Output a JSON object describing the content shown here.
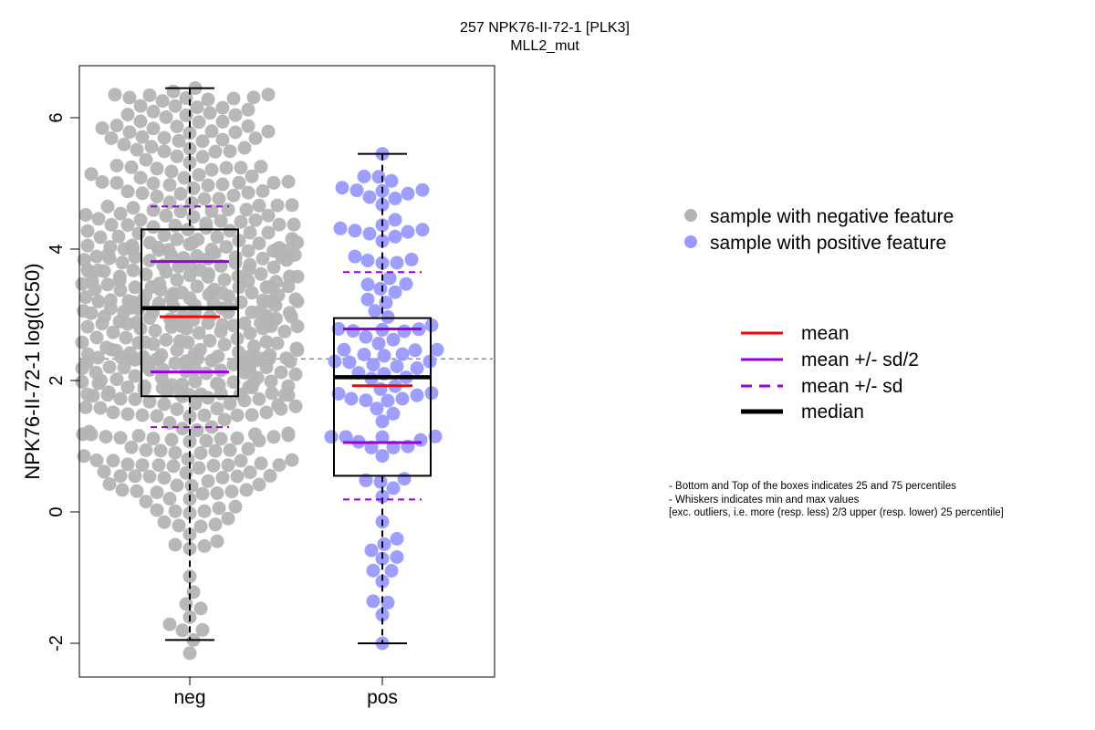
{
  "chart_data": {
    "type": "box-beeswarm",
    "title": "257 NPK76-II-72-1 [PLK3]",
    "subtitle": "MLL2_mut",
    "ylabel": "NPK76-II-72-1 log(IC50)",
    "xlabel": "",
    "ylim": [
      -2.5,
      6.8
    ],
    "yticks": [
      -2,
      0,
      2,
      4,
      6
    ],
    "categories": [
      "neg",
      "pos"
    ],
    "reference_line_y": 2.33,
    "groups": [
      {
        "category": "neg",
        "color": "#b4b4b4",
        "n": 520,
        "seed": 7,
        "min": -1.95,
        "q1": 1.76,
        "median": 3.1,
        "q3": 4.3,
        "max": 6.45,
        "mean": 2.97,
        "sd": 1.68,
        "extra_points": [
          -2.15,
          6.45,
          6.4,
          6.3,
          -1.95,
          -1.6,
          -1.4
        ]
      },
      {
        "category": "pos",
        "color": "#9999ff",
        "n": 100,
        "seed": 13,
        "min": -2.0,
        "q1": 0.55,
        "median": 2.05,
        "q3": 2.95,
        "max": 5.45,
        "mean": 1.92,
        "sd": 1.73,
        "extra_points": [
          -2.0,
          -1.38,
          -1.36,
          5.45,
          5.1,
          4.9
        ]
      }
    ],
    "legend_points": [
      {
        "label": "sample with negative feature",
        "color": "#b4b4b4"
      },
      {
        "label": "sample with positive feature",
        "color": "#9999ff"
      }
    ],
    "legend_lines": [
      {
        "label": "mean",
        "color": "#ff0000",
        "style": "solid"
      },
      {
        "label": "mean +/- sd/2",
        "color": "#9900dd",
        "style": "solid"
      },
      {
        "label": "mean +/- sd",
        "color": "#9900dd",
        "style": "dashed"
      },
      {
        "label": "median",
        "color": "#000000",
        "style": "solid-thick"
      }
    ],
    "notes": [
      "- Bottom and Top of the boxes indicates 25 and 75 percentiles",
      "- Whiskers indicates min and max values",
      "[exc. outliers, i.e. more (resp. less) 2/3 upper (resp. lower) 25 percentile]"
    ]
  }
}
